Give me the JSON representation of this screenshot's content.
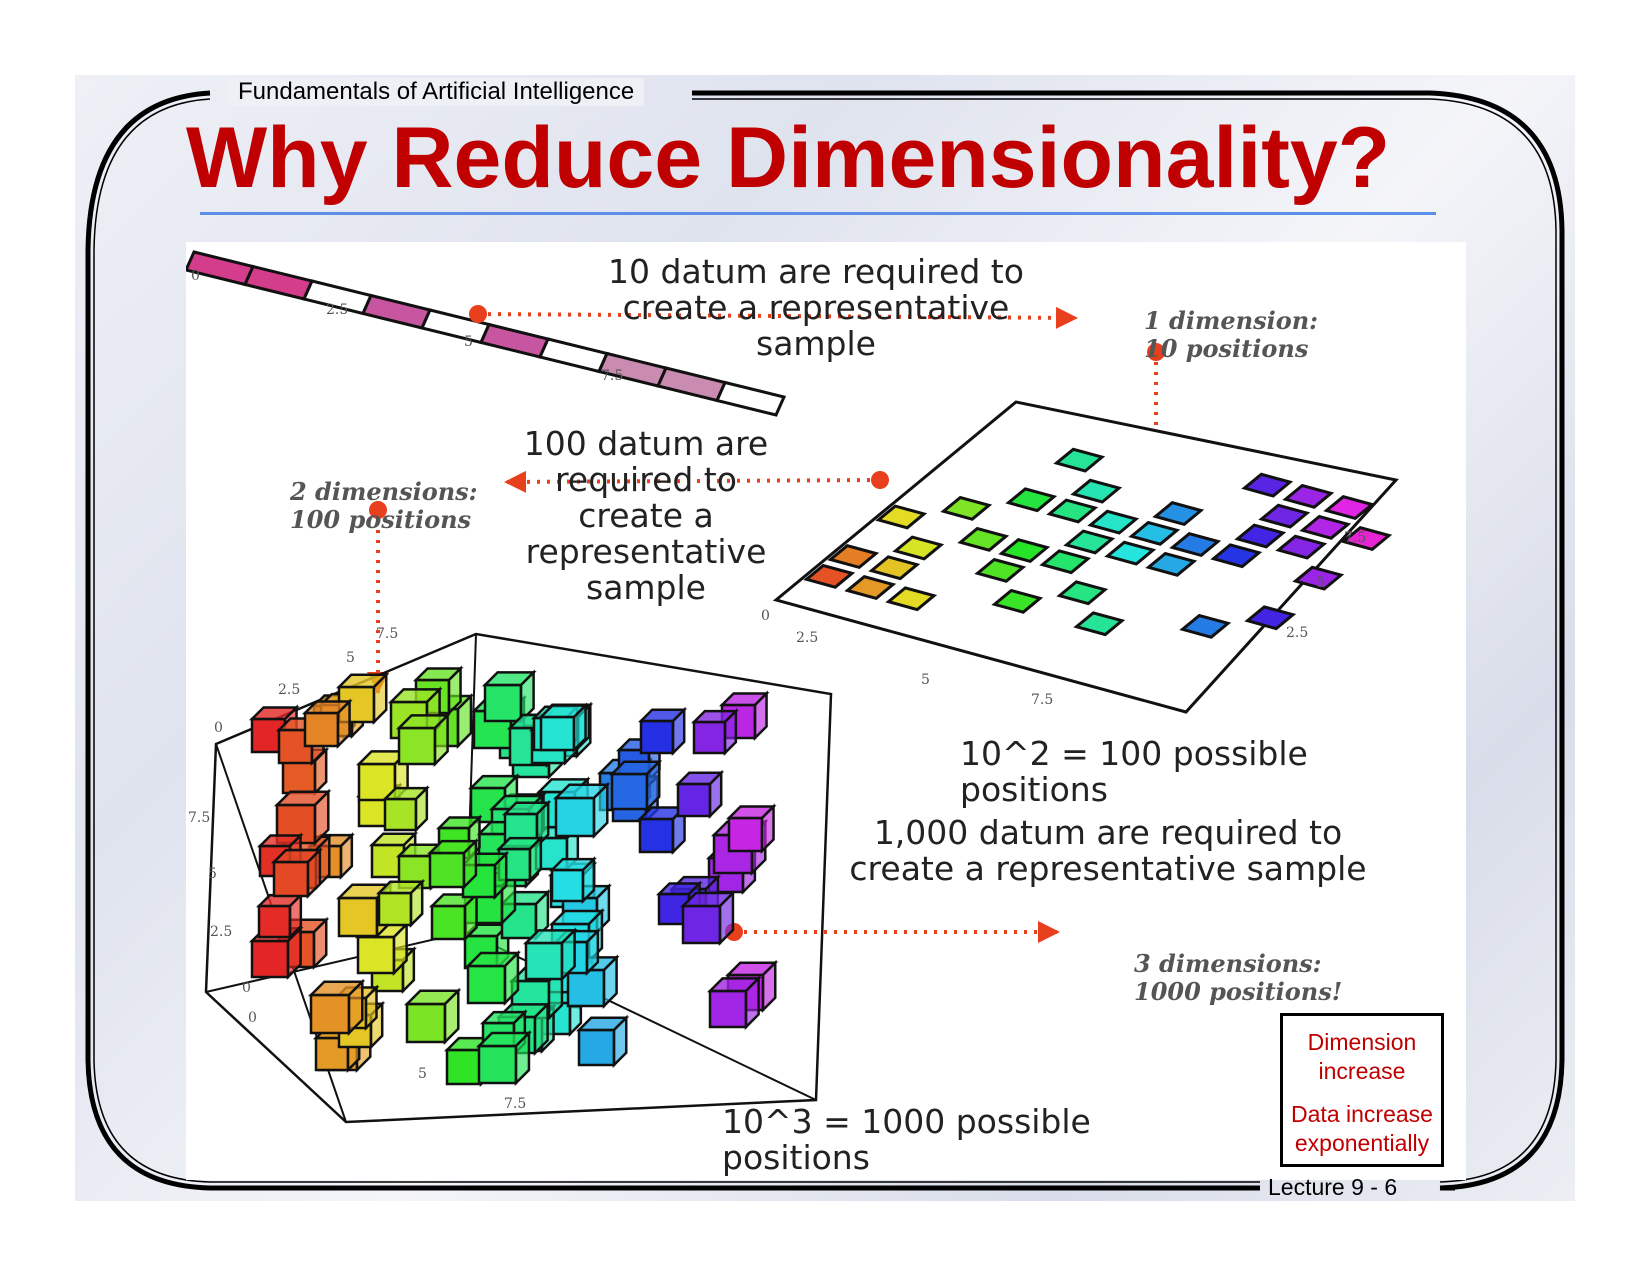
{
  "header": {
    "course": "Fundamentals of Artificial Intelligence",
    "title": "Why Reduce Dimensionality?"
  },
  "figure": {
    "caption_1d": "10 datum are required to\ncreate a representative sample",
    "label_1d": "1 dimension:\n10 positions",
    "caption_2d": "100 datum are\nrequired to\ncreate a\nrepresentative\nsample",
    "label_2d": "2 dimensions:\n100 positions",
    "formula_2d": "10^2 = 100 possible positions",
    "caption_3d": "1,000 datum are required to\ncreate a representative sample",
    "label_3d": "3 dimensions:\n1000 positions!",
    "formula_3d": "10^3 = 1000 possible positions",
    "ticks": [
      "0",
      "2.5",
      "5",
      "7.5"
    ],
    "arrow_color": "#e8401c"
  },
  "note": {
    "line1": "Dimension",
    "line2": "increase",
    "line3": "Data increase",
    "line4": "exponentially"
  },
  "footer": {
    "lecture": "Lecture 9 - 6"
  },
  "colors": {
    "title": "#c00000",
    "rule": "#5b8fe8",
    "note_text": "#c00000"
  }
}
